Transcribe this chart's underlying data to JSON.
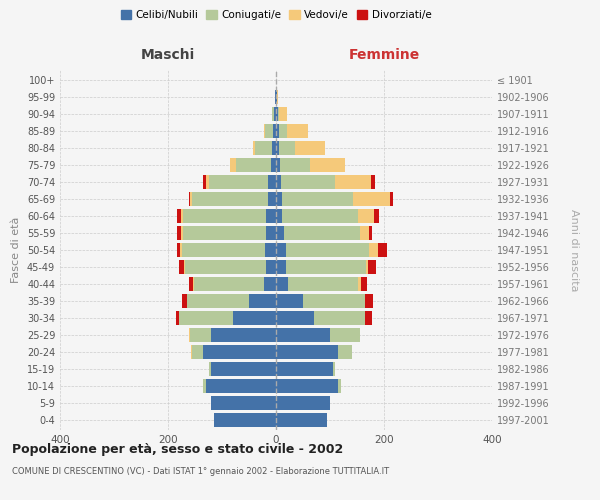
{
  "age_groups": [
    "0-4",
    "5-9",
    "10-14",
    "15-19",
    "20-24",
    "25-29",
    "30-34",
    "35-39",
    "40-44",
    "45-49",
    "50-54",
    "55-59",
    "60-64",
    "65-69",
    "70-74",
    "75-79",
    "80-84",
    "85-89",
    "90-94",
    "95-99",
    "100+"
  ],
  "birth_years": [
    "1997-2001",
    "1992-1996",
    "1987-1991",
    "1982-1986",
    "1977-1981",
    "1972-1976",
    "1967-1971",
    "1962-1966",
    "1957-1961",
    "1952-1956",
    "1947-1951",
    "1942-1946",
    "1937-1941",
    "1932-1936",
    "1927-1931",
    "1922-1926",
    "1917-1921",
    "1912-1916",
    "1907-1911",
    "1902-1906",
    "≤ 1901"
  ],
  "maschi": {
    "celibi": [
      115,
      120,
      130,
      120,
      135,
      120,
      80,
      50,
      22,
      18,
      20,
      18,
      18,
      15,
      15,
      10,
      8,
      5,
      3,
      1,
      0
    ],
    "coniugati": [
      0,
      0,
      5,
      5,
      20,
      40,
      100,
      115,
      130,
      150,
      155,
      155,
      155,
      140,
      110,
      65,
      30,
      15,
      4,
      1,
      0
    ],
    "vedovi": [
      0,
      0,
      0,
      0,
      2,
      2,
      0,
      0,
      2,
      2,
      3,
      3,
      3,
      5,
      5,
      10,
      5,
      3,
      1,
      0,
      0
    ],
    "divorziati": [
      0,
      0,
      0,
      0,
      0,
      0,
      5,
      10,
      8,
      10,
      5,
      8,
      8,
      2,
      5,
      0,
      0,
      0,
      0,
      0,
      0
    ]
  },
  "femmine": {
    "nubili": [
      95,
      100,
      115,
      105,
      115,
      100,
      70,
      50,
      22,
      18,
      18,
      15,
      12,
      12,
      10,
      8,
      5,
      5,
      3,
      1,
      0
    ],
    "coniugate": [
      0,
      0,
      5,
      5,
      25,
      55,
      95,
      115,
      130,
      148,
      155,
      140,
      140,
      130,
      100,
      55,
      30,
      15,
      3,
      0,
      0
    ],
    "vedove": [
      0,
      0,
      0,
      0,
      0,
      0,
      0,
      0,
      5,
      5,
      15,
      18,
      30,
      70,
      65,
      65,
      55,
      40,
      15,
      2,
      0
    ],
    "divorziate": [
      0,
      0,
      0,
      0,
      0,
      0,
      12,
      15,
      12,
      15,
      18,
      5,
      8,
      5,
      8,
      0,
      0,
      0,
      0,
      0,
      0
    ]
  },
  "colors": {
    "celibi": "#4472a8",
    "coniugati": "#b5c99a",
    "vedovi": "#f5c97a",
    "divorziati": "#cc1111"
  },
  "legend_labels": [
    "Celibi/Nubili",
    "Coniugati/e",
    "Vedovi/e",
    "Divorziati/e"
  ],
  "title": "Popolazione per età, sesso e stato civile - 2002",
  "subtitle": "COMUNE DI CRESCENTINO (VC) - Dati ISTAT 1° gennaio 2002 - Elaborazione TUTTITALIA.IT",
  "ylabel_left": "Fasce di età",
  "ylabel_right": "Anni di nascita",
  "xlabel_left": "Maschi",
  "xlabel_right": "Femmine",
  "xlim": 400,
  "background_color": "#f5f5f5"
}
